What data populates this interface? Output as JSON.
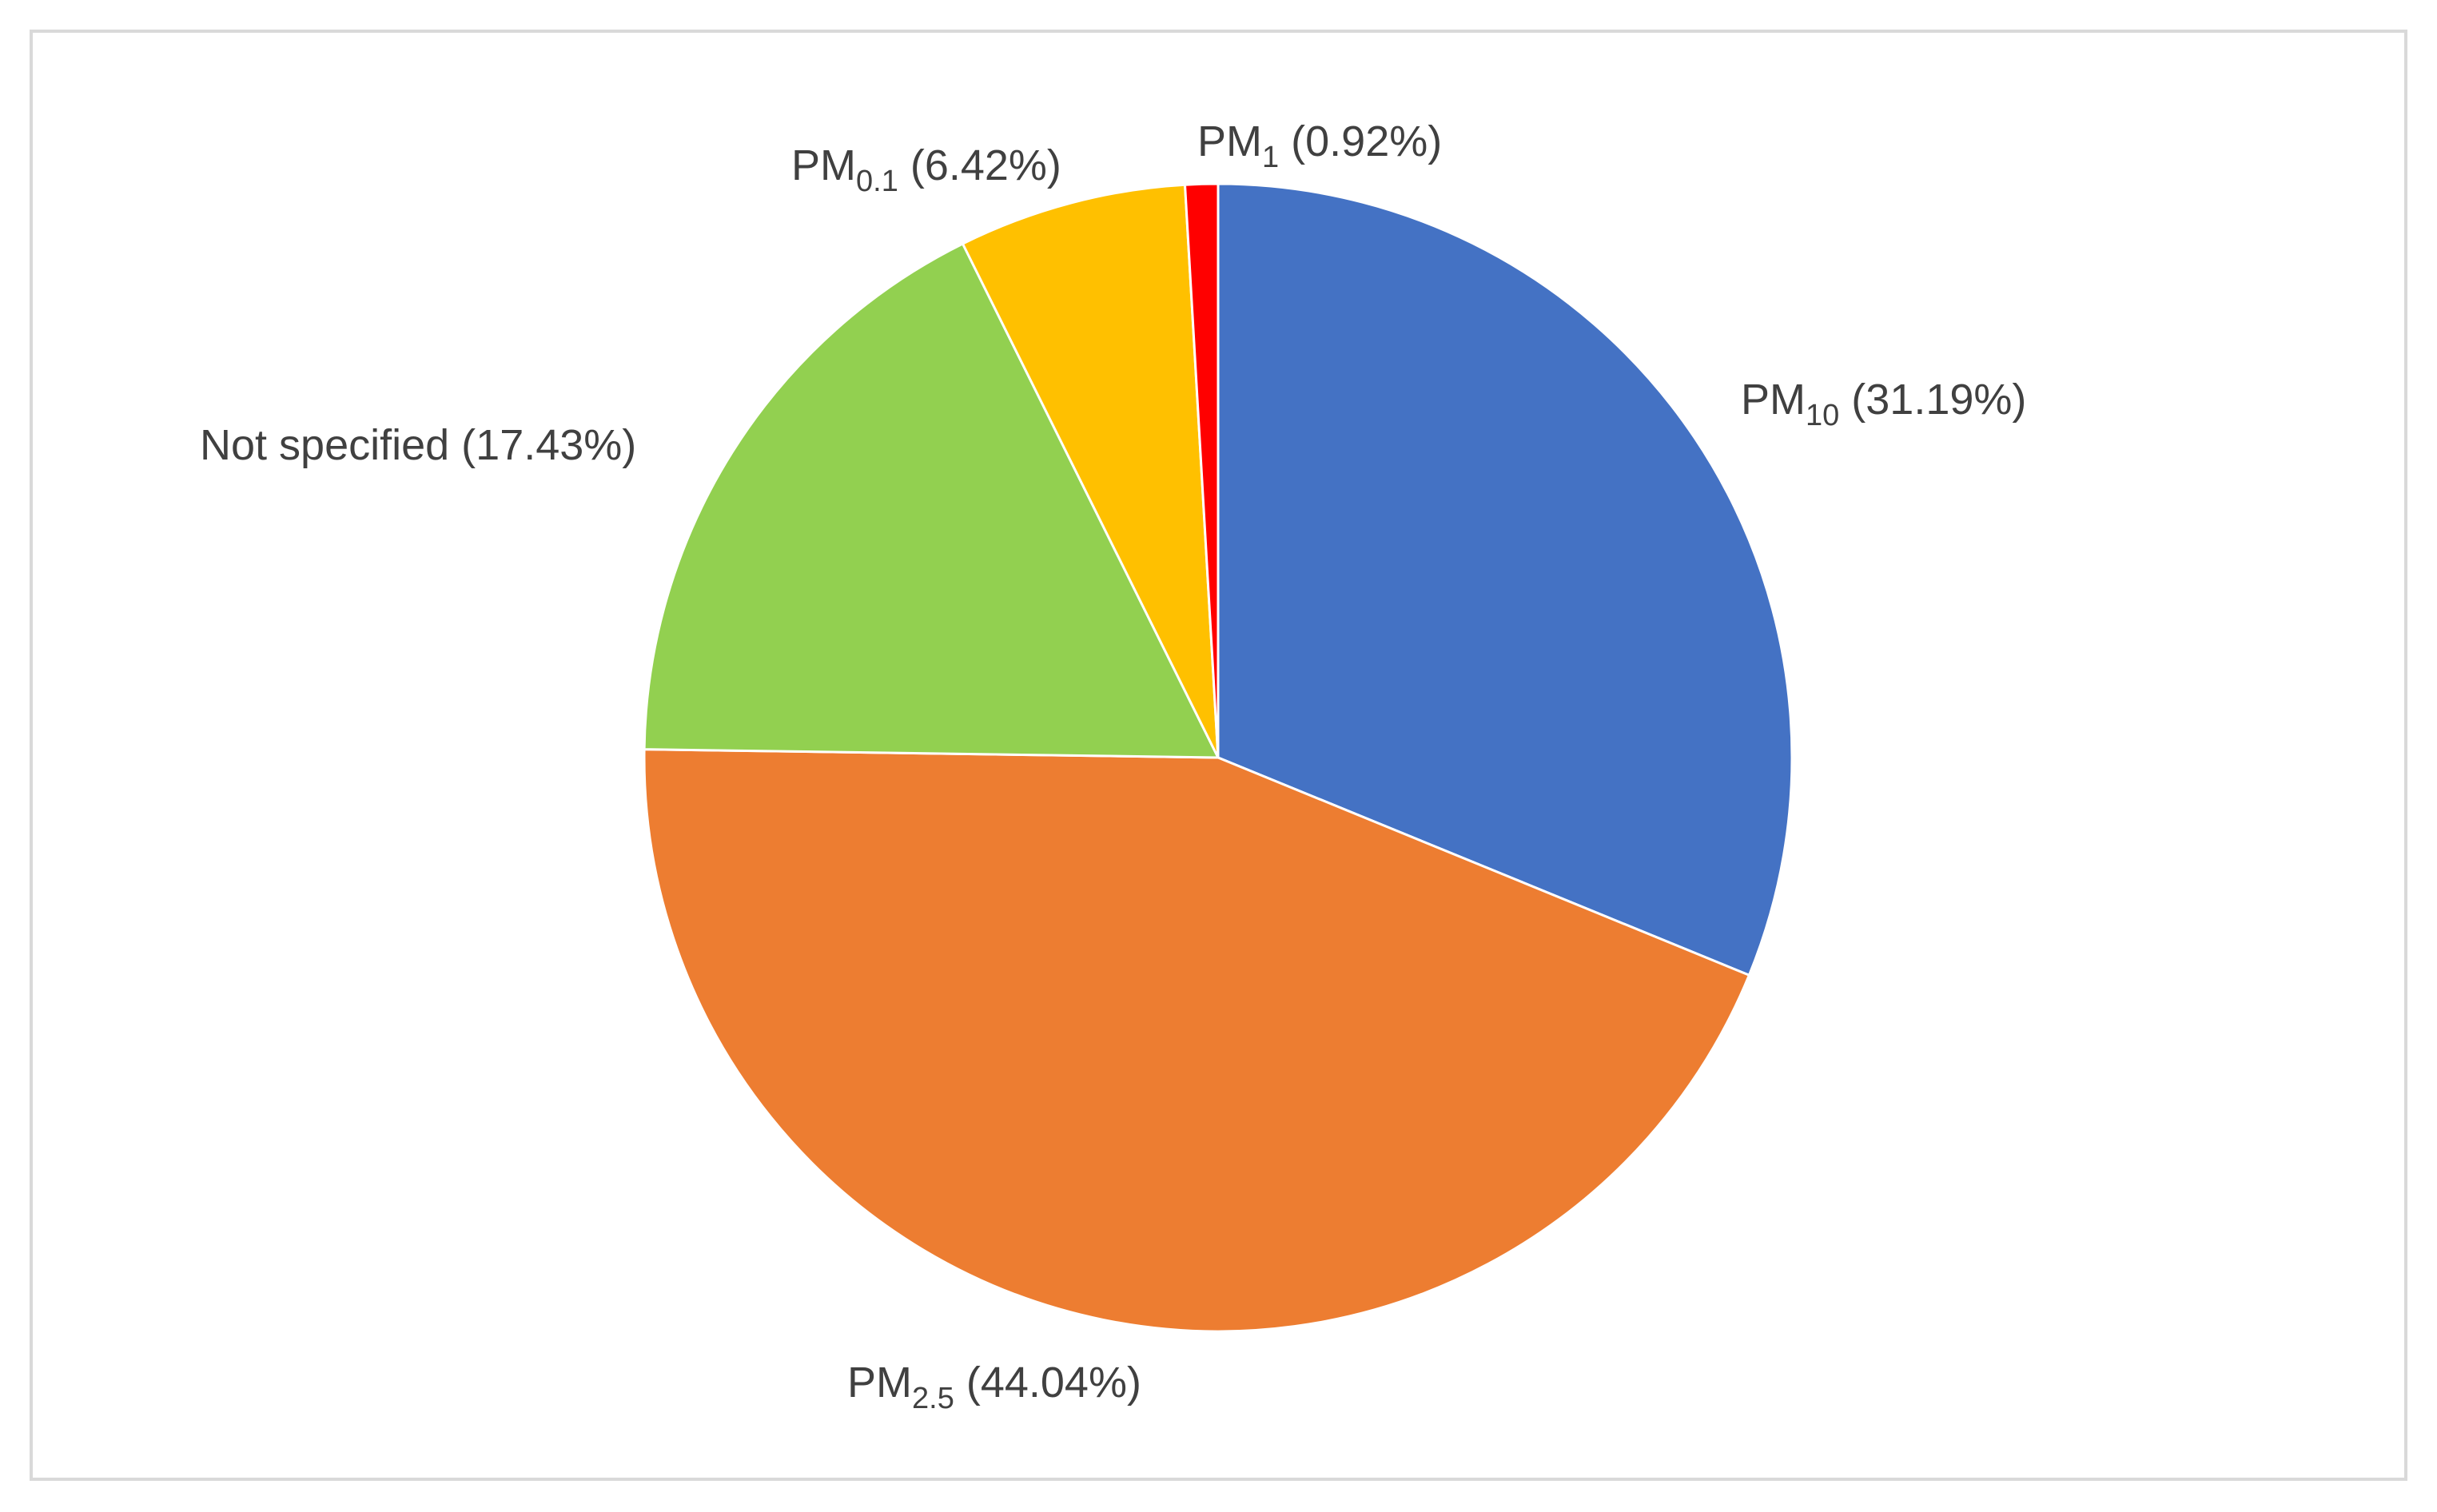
{
  "chart_data": {
    "type": "pie",
    "title": "",
    "slices": [
      {
        "name": "PM",
        "sub": "10",
        "pct_text": "(31.19%)",
        "value": 31.19,
        "color": "#4472C4"
      },
      {
        "name": "PM",
        "sub": "2.5",
        "pct_text": "(44.04%)",
        "value": 44.04,
        "color": "#ED7D31"
      },
      {
        "name": "Not specified",
        "sub": "",
        "pct_text": "(17.43%)",
        "value": 17.43,
        "color": "#92D050"
      },
      {
        "name": "PM",
        "sub": "0.1",
        "pct_text": "(6.42%)",
        "value": 6.42,
        "color": "#FFC000"
      },
      {
        "name": "PM",
        "sub": "1",
        "pct_text": "(0.92%)",
        "value": 0.92,
        "color": "#FF0000"
      }
    ],
    "start": "12 o'clock",
    "direction": "clockwise",
    "legend": "none",
    "labels": "outside"
  }
}
